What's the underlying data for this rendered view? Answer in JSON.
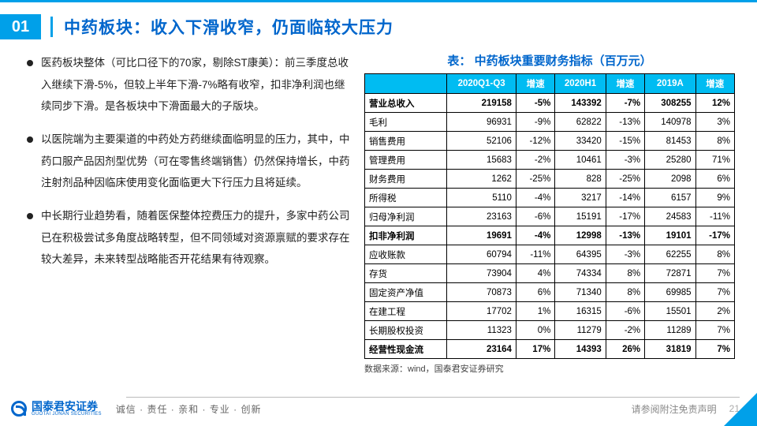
{
  "header": {
    "section_num": "01",
    "title": "中药板块：收入下滑收窄，仍面临较大压力"
  },
  "bullets": [
    "医药板块整体（可比口径下的70家，剔除ST康美）：前三季度总收入继续下滑-5%，但较上半年下滑-7%略有收窄，扣非净利润也继续同步下滑。是各板块中下滑面最大的子版块。",
    "以医院端为主要渠道的中药处方药继续面临明显的压力，其中，中药口服产品因剂型优势（可在零售终端销售）仍然保持增长，中药注射剂品种因临床使用变化面临更大下行压力且将延续。",
    "中长期行业趋势看，随着医保整体控费压力的提升，多家中药公司已在积极尝试多角度战略转型，但不同领域对资源禀赋的要求存在较大差异，未来转型战略能否开花结果有待观察。"
  ],
  "table": {
    "title": "表： 中药板块重要财务指标（百万元）",
    "columns": [
      "",
      "2020Q1-Q3",
      "增速",
      "2020H1",
      "增速",
      "2019A",
      "增速"
    ],
    "rows": [
      {
        "bold": true,
        "cells": [
          "营业总收入",
          "219158",
          "-5%",
          "143392",
          "-7%",
          "308255",
          "12%"
        ]
      },
      {
        "bold": false,
        "cells": [
          "毛利",
          "96931",
          "-9%",
          "62822",
          "-13%",
          "140978",
          "3%"
        ]
      },
      {
        "bold": false,
        "cells": [
          "销售费用",
          "52106",
          "-12%",
          "33420",
          "-15%",
          "81453",
          "8%"
        ]
      },
      {
        "bold": false,
        "cells": [
          "管理费用",
          "15683",
          "-2%",
          "10461",
          "-3%",
          "25280",
          "71%"
        ]
      },
      {
        "bold": false,
        "cells": [
          "财务费用",
          "1262",
          "-25%",
          "828",
          "-25%",
          "2098",
          "6%"
        ]
      },
      {
        "bold": false,
        "cells": [
          "所得税",
          "5110",
          "-4%",
          "3217",
          "-14%",
          "6157",
          "9%"
        ]
      },
      {
        "bold": false,
        "cells": [
          "归母净利润",
          "23163",
          "-6%",
          "15191",
          "-17%",
          "24583",
          "-11%"
        ]
      },
      {
        "bold": true,
        "cells": [
          "扣非净利润",
          "19691",
          "-4%",
          "12998",
          "-13%",
          "19101",
          "-17%"
        ]
      },
      {
        "bold": false,
        "cells": [
          "应收账款",
          "60794",
          "-11%",
          "64395",
          "-3%",
          "62255",
          "8%"
        ]
      },
      {
        "bold": false,
        "cells": [
          "存货",
          "73904",
          "4%",
          "74334",
          "8%",
          "72871",
          "7%"
        ]
      },
      {
        "bold": false,
        "cells": [
          "固定资产净值",
          "70873",
          "6%",
          "71340",
          "8%",
          "69985",
          "7%"
        ]
      },
      {
        "bold": false,
        "cells": [
          "在建工程",
          "17702",
          "1%",
          "16315",
          "-6%",
          "15501",
          "2%"
        ]
      },
      {
        "bold": false,
        "cells": [
          "长期股权投资",
          "11323",
          "0%",
          "11279",
          "-2%",
          "11289",
          "7%"
        ]
      },
      {
        "bold": true,
        "cells": [
          "经营性现金流",
          "23164",
          "17%",
          "14393",
          "26%",
          "31819",
          "7%"
        ]
      }
    ],
    "source": "数据来源：wind，国泰君安证券研究"
  },
  "footer": {
    "logo_name": "国泰君安证券",
    "logo_sub": "GUOTAI JUNAN SECURITIES",
    "motto": "诚信 · 责任 · 亲和 · 专业 · 创新",
    "disclaimer": "请参阅附注免责声明",
    "page": "21"
  },
  "colors": {
    "accent": "#00a0e9",
    "title_blue": "#0066cc",
    "th_bg": "#00bcf2"
  }
}
